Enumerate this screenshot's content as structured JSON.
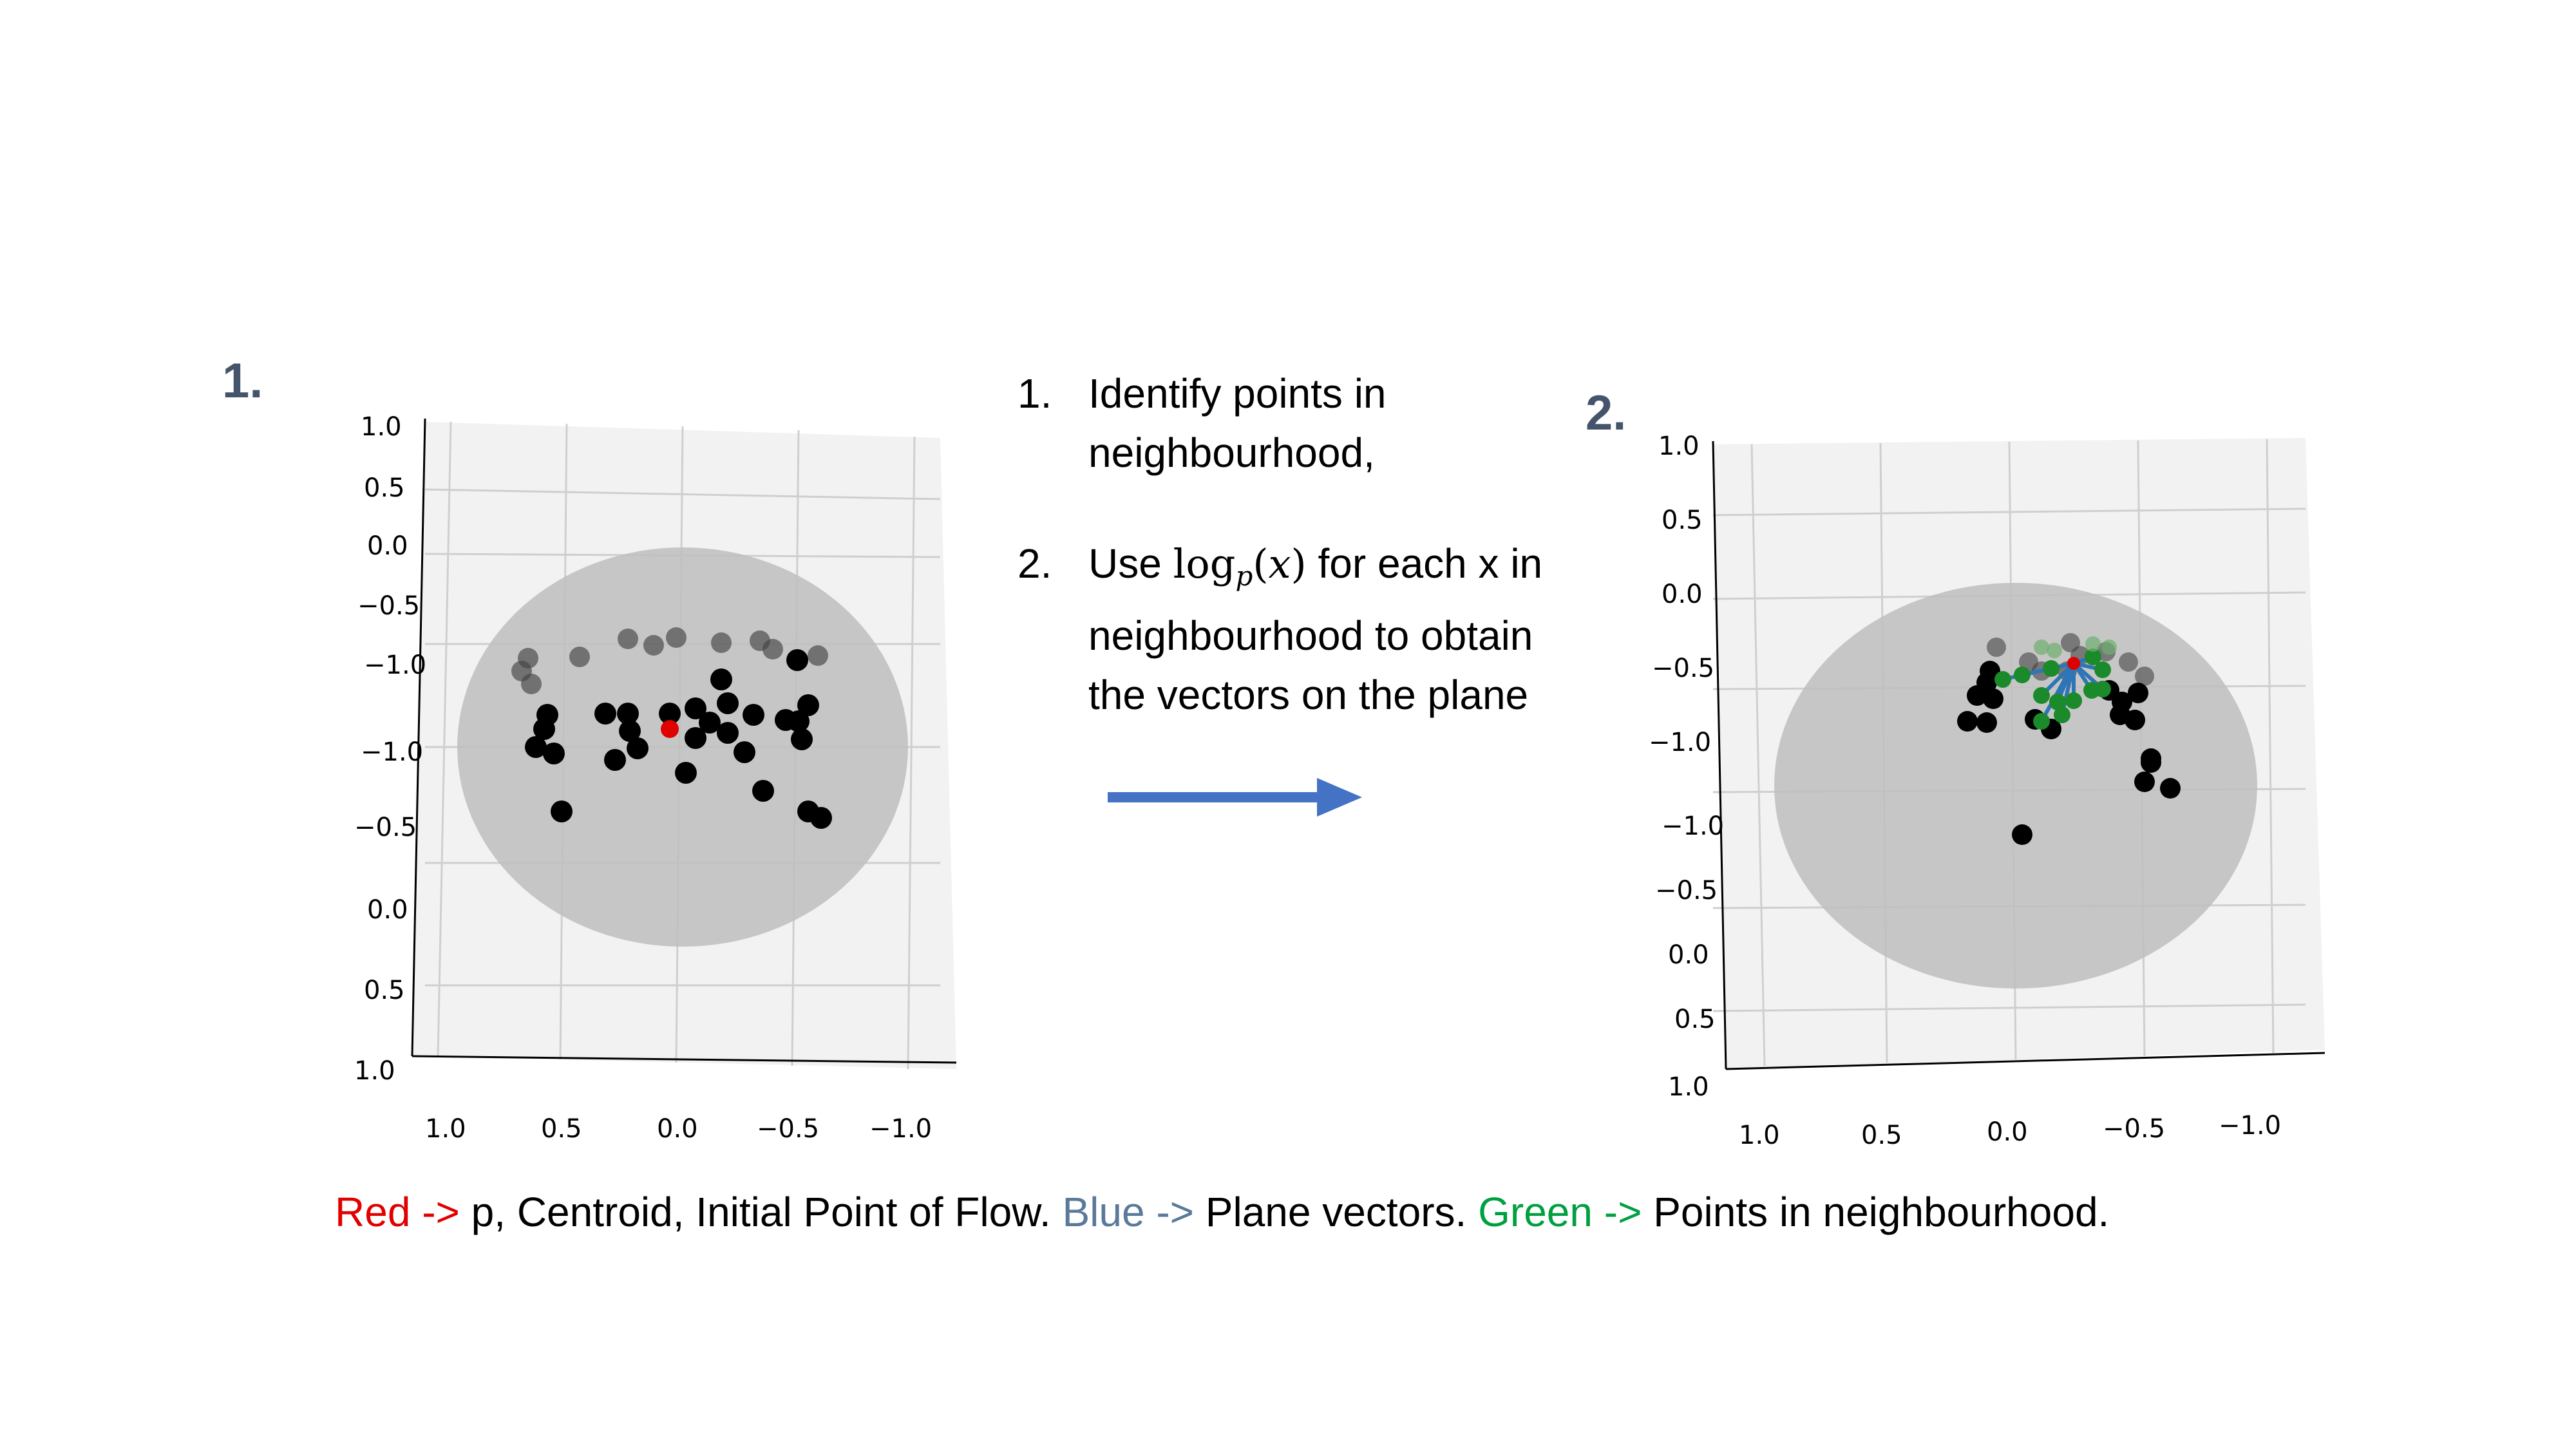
{
  "panel_labels": {
    "first": "1.",
    "second": "2."
  },
  "steps": [
    {
      "num": "1.",
      "text": "Identify points in neighbourhood,"
    },
    {
      "num": "2.",
      "pre": "Use ",
      "math_fn": "log",
      "math_sub": "p",
      "math_open": "(",
      "math_var": "x",
      "math_close": ")",
      "post": " for each x in neighbourhood to obtain the vectors on the plane"
    }
  ],
  "plot1": {
    "z_ticks": [
      "1.0",
      "0.5",
      "0.0",
      "−0.5",
      "−1.0"
    ],
    "y_ticks": [
      "−1.0",
      "−0.5",
      "0.0",
      "0.5",
      "1.0"
    ],
    "x_ticks": [
      "1.0",
      "0.5",
      "0.0",
      "−0.5",
      "−1.0"
    ]
  },
  "plot2": {
    "z_ticks": [
      "1.0",
      "0.5",
      "0.0",
      "−0.5",
      "−1.0"
    ],
    "y_ticks": [
      "−1.0",
      "−0.5",
      "0.0",
      "0.5",
      "1.0"
    ],
    "x_ticks": [
      "1.0",
      "0.5",
      "0.0",
      "−0.5",
      "−1.0"
    ]
  },
  "legend": {
    "red_key": "Red ->",
    "red_desc": " p, Centroid, Initial Point of Flow.  ",
    "blue_key": "Blue ->",
    "blue_desc": " Plane vectors.  ",
    "green_key": "Green ->",
    "green_desc": " Points in neighbourhood."
  },
  "colors": {
    "label": "#44546A",
    "red": "#E00000",
    "blue": "#5A7A9A",
    "green": "#00A040",
    "arrow": "#4472C4",
    "vector": "#2E75B6",
    "disk": "#C9C9C9",
    "pane": "#F2F2F2"
  }
}
